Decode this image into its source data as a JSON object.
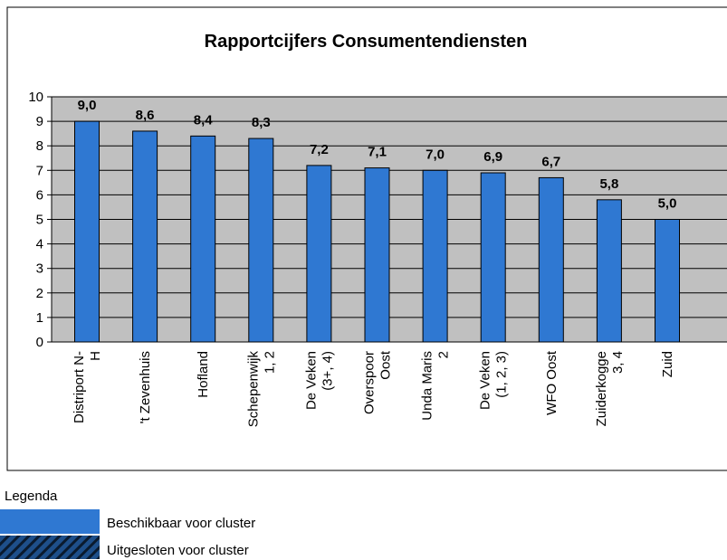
{
  "chart_data": {
    "type": "bar",
    "title": "Rapportcijfers Consumentendiensten",
    "categories": [
      "Distriport N-\nH",
      "'t Zevenhuis",
      "Hofland",
      "Schepenwijk\n1, 2",
      "De Veken\n(3+, 4)",
      "Overspoor\nOost",
      "Unda Maris\n2",
      "De Veken\n(1, 2, 3)",
      "WFO Oost",
      "Zuiderkogge\n3, 4",
      "Zuid"
    ],
    "values": [
      9.0,
      8.6,
      8.4,
      8.3,
      7.2,
      7.1,
      7.0,
      6.9,
      6.7,
      5.8,
      5.0
    ],
    "value_labels": [
      "9,0",
      "8,6",
      "8,4",
      "8,3",
      "7,2",
      "7,1",
      "7,0",
      "6,9",
      "6,7",
      "5,8",
      "5,0"
    ],
    "color": "#2f78d2",
    "ylim": [
      0,
      10
    ],
    "yticks": [
      0,
      1,
      2,
      3,
      4,
      5,
      6,
      7,
      8,
      9,
      10
    ],
    "grid": true
  },
  "legend": {
    "title": "Legenda",
    "items": [
      "Beschikbaar voor cluster",
      "Uitgesloten voor cluster"
    ]
  }
}
